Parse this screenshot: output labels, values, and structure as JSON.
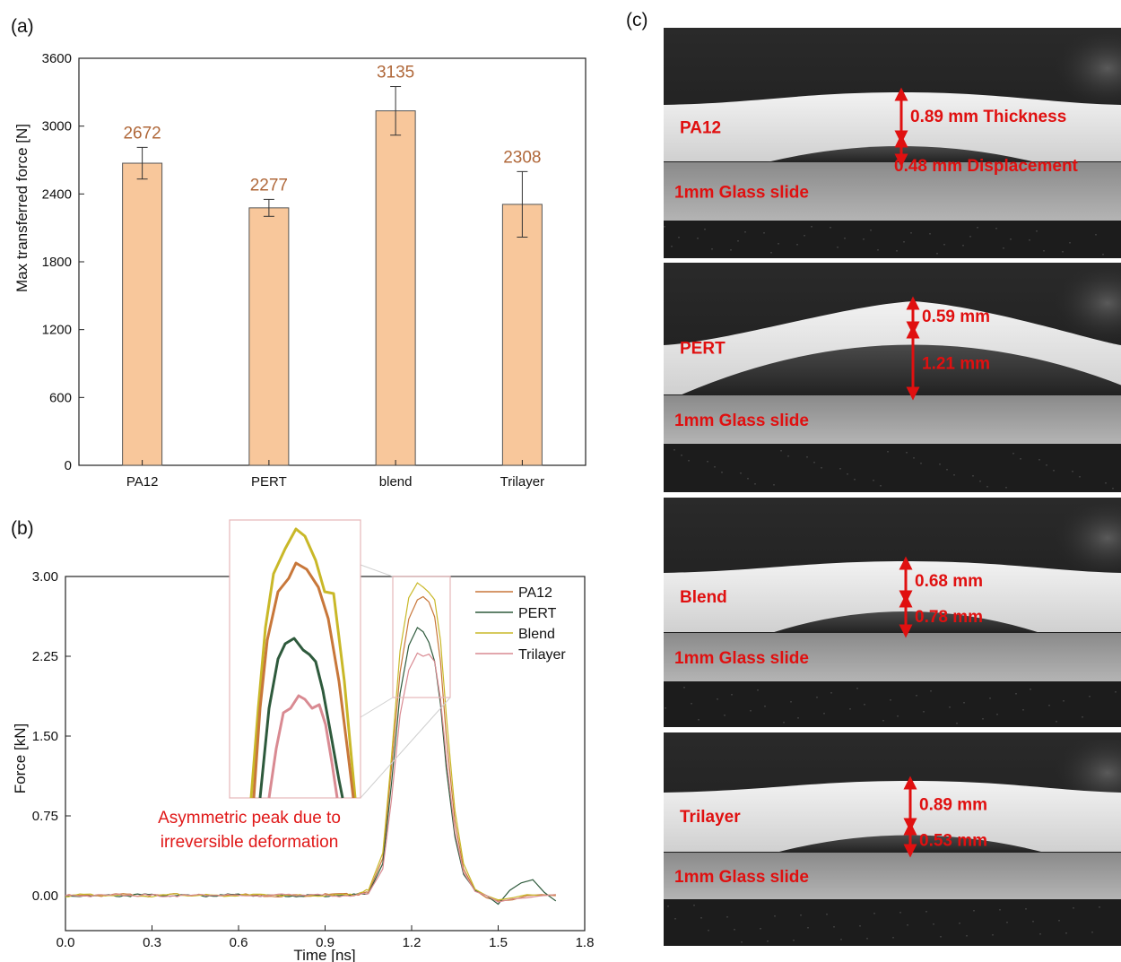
{
  "panels": {
    "a": "(a)",
    "b": "(b)",
    "c": "(c)"
  },
  "colors": {
    "bar_fill": "#f8c79b",
    "bar_edge": "#555555",
    "value_label": "#b0683a",
    "PA12": "#c8773a",
    "PERT": "#2e5a3c",
    "Blend": "#c9b828",
    "Trilayer": "#d98a92",
    "annotation": "#e01818"
  },
  "chart_data": [
    {
      "type": "bar",
      "panel": "(a)",
      "categories": [
        "PA12",
        "PERT",
        "blend",
        "Trilayer"
      ],
      "values": [
        2672,
        2277,
        3135,
        2308
      ],
      "value_labels": [
        "2672",
        "2277",
        "3135",
        "2308"
      ],
      "error": [
        140,
        75,
        215,
        290
      ],
      "ylabel": "Max transferred force [N]",
      "xlabel": "",
      "ylim": [
        0,
        3600
      ],
      "yticks": [
        "0",
        "600",
        "1200",
        "1800",
        "2400",
        "3000",
        "3600"
      ]
    },
    {
      "type": "line",
      "panel": "(b)",
      "xlabel": "Time [ns]",
      "ylabel": "Force [kN]",
      "xlim": [
        0,
        1.8
      ],
      "ylim": [
        -0.1,
        3.0
      ],
      "xticks": [
        "0.0",
        "0.3",
        "0.6",
        "0.9",
        "1.2",
        "1.5",
        "1.8"
      ],
      "yticks": [
        "0.00",
        "0.75",
        "1.50",
        "2.25",
        "3.00"
      ],
      "legend_position": "top-right",
      "annotation": "Asymmetric peak due to\nirreversible deformation",
      "series": [
        {
          "name": "PA12",
          "x": [
            0,
            0.1,
            0.2,
            0.3,
            0.4,
            0.5,
            0.6,
            0.7,
            0.8,
            0.9,
            1.0,
            1.05,
            1.1,
            1.13,
            1.16,
            1.19,
            1.22,
            1.24,
            1.26,
            1.28,
            1.3,
            1.32,
            1.35,
            1.38,
            1.42,
            1.46,
            1.5,
            1.55,
            1.6,
            1.65,
            1.7
          ],
          "y": [
            0.0,
            0.0,
            0.01,
            0.0,
            0.01,
            0.0,
            0.01,
            0.0,
            0.0,
            0.01,
            0.01,
            0.03,
            0.35,
            1.2,
            2.1,
            2.6,
            2.78,
            2.81,
            2.76,
            2.62,
            2.2,
            1.5,
            0.7,
            0.25,
            0.05,
            -0.02,
            -0.05,
            -0.04,
            0.0,
            0.01,
            0.0
          ]
        },
        {
          "name": "PERT",
          "x": [
            0,
            0.1,
            0.2,
            0.3,
            0.4,
            0.5,
            0.6,
            0.7,
            0.8,
            0.9,
            1.0,
            1.05,
            1.1,
            1.13,
            1.16,
            1.19,
            1.22,
            1.24,
            1.26,
            1.28,
            1.3,
            1.32,
            1.35,
            1.38,
            1.42,
            1.46,
            1.5,
            1.54,
            1.58,
            1.62,
            1.66,
            1.7
          ],
          "y": [
            0.0,
            0.0,
            0.0,
            0.01,
            0.0,
            0.0,
            0.01,
            0.0,
            0.0,
            0.0,
            0.01,
            0.02,
            0.3,
            1.05,
            1.9,
            2.35,
            2.52,
            2.48,
            2.38,
            2.2,
            1.8,
            1.2,
            0.55,
            0.2,
            0.05,
            0.0,
            -0.08,
            0.05,
            0.12,
            0.15,
            0.03,
            -0.05
          ]
        },
        {
          "name": "Blend",
          "x": [
            0,
            0.1,
            0.2,
            0.3,
            0.4,
            0.5,
            0.6,
            0.7,
            0.8,
            0.9,
            1.0,
            1.05,
            1.1,
            1.13,
            1.16,
            1.19,
            1.22,
            1.24,
            1.26,
            1.28,
            1.3,
            1.32,
            1.35,
            1.38,
            1.42,
            1.46,
            1.5,
            1.55,
            1.6,
            1.65,
            1.7
          ],
          "y": [
            0.0,
            0.01,
            0.0,
            0.0,
            0.01,
            0.0,
            0.0,
            0.01,
            0.0,
            0.0,
            0.01,
            0.05,
            0.4,
            1.3,
            2.3,
            2.8,
            2.94,
            2.9,
            2.85,
            2.78,
            2.4,
            1.7,
            0.8,
            0.3,
            0.06,
            0.0,
            -0.04,
            -0.02,
            0.01,
            0.0,
            0.01
          ]
        },
        {
          "name": "Trilayer",
          "x": [
            0,
            0.1,
            0.2,
            0.3,
            0.4,
            0.5,
            0.6,
            0.7,
            0.8,
            0.9,
            1.0,
            1.05,
            1.1,
            1.13,
            1.16,
            1.19,
            1.22,
            1.24,
            1.26,
            1.28,
            1.3,
            1.32,
            1.35,
            1.38,
            1.42,
            1.46,
            1.5,
            1.55,
            1.6,
            1.65,
            1.7
          ],
          "y": [
            0.0,
            0.0,
            0.01,
            0.0,
            0.0,
            0.01,
            0.0,
            0.0,
            0.01,
            0.0,
            0.0,
            0.02,
            0.25,
            0.9,
            1.7,
            2.12,
            2.28,
            2.25,
            2.27,
            2.2,
            1.85,
            1.3,
            0.6,
            0.22,
            0.04,
            0.0,
            -0.06,
            -0.03,
            -0.02,
            0.0,
            0.01
          ]
        }
      ]
    }
  ],
  "photos": [
    {
      "sample": "PA12",
      "top": "0.89 mm Thickness",
      "bottom": "0.48 mm Displacement",
      "substrate": "1mm Glass slide"
    },
    {
      "sample": "PERT",
      "top": "0.59 mm",
      "bottom": "1.21 mm",
      "substrate": "1mm Glass slide"
    },
    {
      "sample": "Blend",
      "top": "0.68 mm",
      "bottom": "0.78 mm",
      "substrate": "1mm Glass slide"
    },
    {
      "sample": "Trilayer",
      "top": "0.89 mm",
      "bottom": "0.53 mm",
      "substrate": "1mm Glass slide"
    }
  ]
}
